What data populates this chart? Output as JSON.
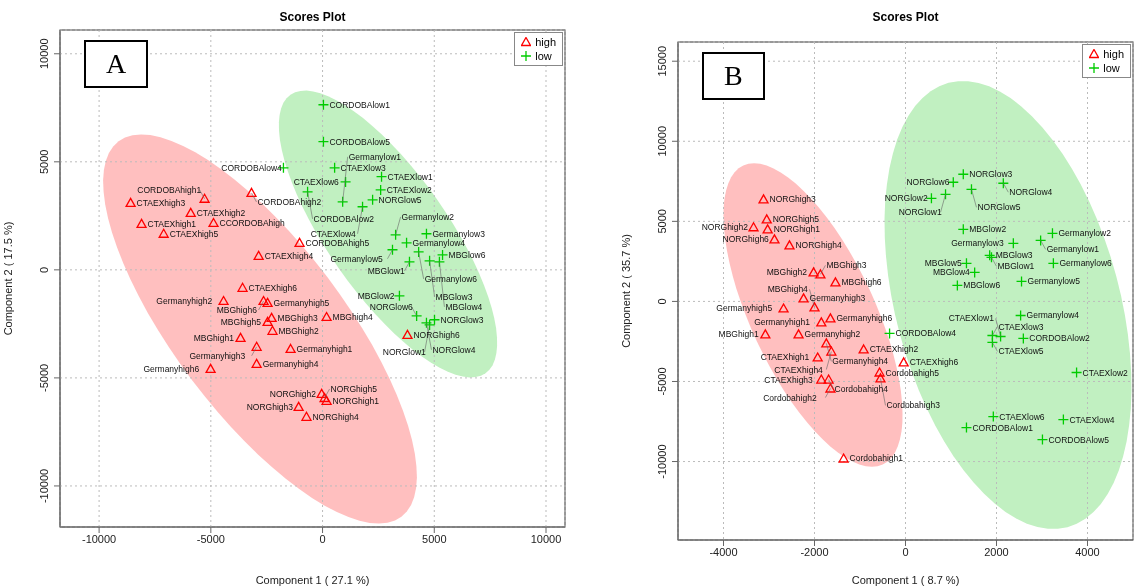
{
  "chart_data": [
    {
      "type": "scatter",
      "title": "Scores Plot",
      "xlabel": "Component 1 ( 27.1 %)",
      "ylabel": "Component 2 ( 17.5 %)",
      "xlim": [
        -11750,
        10850
      ],
      "ylim": [
        -11900,
        11100
      ],
      "xticks": [
        -10000,
        -5000,
        0,
        5000,
        10000
      ],
      "yticks": [
        -10000,
        -5000,
        0,
        5000,
        10000
      ],
      "grid": true,
      "legend": "top right",
      "series": [
        {
          "name": "high",
          "color": "#ff0000",
          "marker": "triangle",
          "x": [
            -8590,
            -5280,
            -5900,
            -8100,
            -4880,
            -7110,
            -3180,
            -1030,
            -2860,
            -3580,
            -4430,
            -2640,
            -2460,
            -2280,
            -2460,
            180,
            -2240,
            -3670,
            -2950,
            -1430,
            -2950,
            -5010,
            -40,
            90,
            180,
            -1070,
            -720,
            3800
          ],
          "values": [
            3100,
            3290,
            2640,
            2130,
            2170,
            1670,
            3560,
            1250,
            650,
            -830,
            -1440,
            -1440,
            -1530,
            -2220,
            -2410,
            -2180,
            -2820,
            -3150,
            -3560,
            -3660,
            -4350,
            -4580,
            -5740,
            -5930,
            -6060,
            -6340,
            -6800,
            -3010
          ]
        },
        {
          "name": "low",
          "color": "#00cc00",
          "marker": "cross",
          "x": [
            40,
            40,
            -1750,
            540,
            2640,
            1030,
            -670,
            2600,
            900,
            2240,
            1790,
            3270,
            4650,
            3760,
            3130,
            4300,
            3890,
            4790,
            5370,
            5230,
            3440,
            4210,
            5010,
            4650,
            4790
          ],
          "values": [
            7640,
            5930,
            4720,
            4720,
            4310,
            4070,
            3610,
            3700,
            3150,
            3240,
            2920,
            1620,
            1670,
            1250,
            930,
            830,
            370,
            420,
            690,
            370,
            -1200,
            -2130,
            -2310,
            -2450,
            -2550
          ]
        }
      ],
      "annotations": [
        "A",
        {
          "text": "CTAEXhigh3",
          "x": -8590,
          "y": 3100
        },
        {
          "text": "CORDOBAhigh1",
          "x": -5280,
          "y": 3290
        },
        {
          "text": "CTAEXhigh2",
          "x": -5900,
          "y": 2640
        },
        {
          "text": "CTAEXhigh1",
          "x": -8100,
          "y": 2130
        },
        {
          "text": "CCORDOBAhigh",
          "x": -4880,
          "y": 2170
        },
        {
          "text": "CTAEXhigh5",
          "x": -7110,
          "y": 1670
        },
        {
          "text": "CORDOBAhigh2",
          "x": -3180,
          "y": 3560
        },
        {
          "text": "CORDOBAhigh5",
          "x": -1030,
          "y": 1250
        },
        {
          "text": "CTAEXhigh4",
          "x": -2860,
          "y": 650
        },
        {
          "text": "CTAEXhigh6",
          "x": -3580,
          "y": -830
        },
        {
          "text": "Germanyhigh2",
          "x": -4430,
          "y": -1440
        },
        {
          "text": "MBGhigh6",
          "x": -2640,
          "y": -1440
        },
        {
          "text": "Germanyhigh5",
          "x": -2460,
          "y": -1530
        },
        {
          "text": "MBGhigh3",
          "x": -2280,
          "y": -2220
        },
        {
          "text": "MBGhigh5",
          "x": -2460,
          "y": -2410
        },
        {
          "text": "MBGhigh4",
          "x": 180,
          "y": -2180
        },
        {
          "text": "MBGhigh2",
          "x": -2240,
          "y": -2820
        },
        {
          "text": "MBGhigh1",
          "x": -3670,
          "y": -3150
        },
        {
          "text": "Germanyhigh3",
          "x": -2950,
          "y": -3560
        },
        {
          "text": "Germanyhigh1",
          "x": -1430,
          "y": -3660
        },
        {
          "text": "Germanyhigh4",
          "x": -2950,
          "y": -4350
        },
        {
          "text": "Germanyhigh6",
          "x": -5010,
          "y": -4580
        },
        {
          "text": "NORGhigh2",
          "x": -40,
          "y": -5740
        },
        {
          "text": "NORGhigh5",
          "x": 90,
          "y": -5930
        },
        {
          "text": "NORGhigh1",
          "x": 180,
          "y": -6060
        },
        {
          "text": "NORGhigh3",
          "x": -1070,
          "y": -6340
        },
        {
          "text": "NORGhigh4",
          "x": -720,
          "y": -6800
        },
        {
          "text": "NORGhigh6",
          "x": 3800,
          "y": -3010
        },
        {
          "text": "CORDOBAlow1",
          "x": 40,
          "y": 7640
        },
        {
          "text": "CORDOBAlow5",
          "x": 40,
          "y": 5930
        },
        {
          "text": "CORDOBAlow4",
          "x": -1750,
          "y": 4720
        },
        {
          "text": "CTAEXlow3",
          "x": 540,
          "y": 4720
        },
        {
          "text": "CTAEXlow1",
          "x": 2640,
          "y": 4310
        },
        {
          "text": "CTAEXlow6",
          "x": 1030,
          "y": 4070
        },
        {
          "text": "CORDOBAlow2",
          "x": -670,
          "y": 3610
        },
        {
          "text": "CTAEXlow2",
          "x": 2600,
          "y": 3700
        },
        {
          "text": "Germanylow1",
          "x": 900,
          "y": 3150
        },
        {
          "text": "NORGlow5",
          "x": 2240,
          "y": 3240
        },
        {
          "text": "CTAEXlow4",
          "x": 1790,
          "y": 2920
        },
        {
          "text": "Germanylow2",
          "x": 3270,
          "y": 1620
        },
        {
          "text": "Germanylow3",
          "x": 4650,
          "y": 1670
        },
        {
          "text": "Germanylow4",
          "x": 3760,
          "y": 1250
        },
        {
          "text": "Germanylow5",
          "x": 3130,
          "y": 930
        },
        {
          "text": "Germanylow6",
          "x": 4300,
          "y": 830
        },
        {
          "text": "MBGlow1",
          "x": 3890,
          "y": 370
        },
        {
          "text": "MBGlow3",
          "x": 4790,
          "y": 420
        },
        {
          "text": "MBGlow6",
          "x": 5370,
          "y": 690
        },
        {
          "text": "MBGlow4",
          "x": 5230,
          "y": 370
        },
        {
          "text": "MBGlow2",
          "x": 3440,
          "y": -1200
        },
        {
          "text": "NORGlow6",
          "x": 4210,
          "y": -2130
        },
        {
          "text": "NORGlow3",
          "x": 5010,
          "y": -2310
        },
        {
          "text": "NORGlow4",
          "x": 4650,
          "y": -2450
        },
        {
          "text": "NORGlow1",
          "x": 4790,
          "y": -2550
        }
      ]
    },
    {
      "type": "scatter",
      "title": "Scores Plot",
      "xlabel": "Component 1 ( 8.7 %)",
      "ylabel": "Component 2 ( 35.7 %)",
      "xlim": [
        -5000,
        5000
      ],
      "ylim": [
        -14900,
        16200
      ],
      "xticks": [
        -4000,
        -2000,
        0,
        2000,
        4000
      ],
      "yticks": [
        -10000,
        -5000,
        0,
        5000,
        10000,
        15000
      ],
      "grid": true,
      "legend": "top right",
      "series": [
        {
          "name": "high",
          "color": "#ff0000",
          "marker": "triangle",
          "x": [
            -3120,
            -3050,
            -3340,
            -3030,
            -2880,
            -2550,
            -2020,
            -1870,
            -1540,
            -2240,
            -2680,
            -2000,
            -1850,
            -1650,
            -2350,
            -3080,
            -1740,
            -1630,
            -920,
            -1930,
            -40,
            -570,
            -1850,
            -1690,
            -550,
            -1650,
            -1360
          ],
          "values": [
            6370,
            5120,
            4630,
            4500,
            3870,
            3500,
            1810,
            1690,
            1190,
            190,
            -440,
            -370,
            -1310,
            -1060,
            -2060,
            -2060,
            -2620,
            -3130,
            -3000,
            -3500,
            -3810,
            -4440,
            -4880,
            -4880,
            -4810,
            -5440,
            -9810
          ]
        },
        {
          "name": "low",
          "color": "#00cc00",
          "marker": "cross",
          "x": [
            1270,
            1050,
            2150,
            1450,
            880,
            570,
            1270,
            3230,
            2970,
            2370,
            1850,
            1890,
            1340,
            3250,
            1520,
            2550,
            1140,
            2530,
            -350,
            1910,
            2090,
            2590,
            1910,
            3760,
            1930,
            3470,
            1340,
            3010
          ],
          "values": [
            7940,
            7440,
            7380,
            7000,
            6690,
            6440,
            4500,
            4250,
            3810,
            3630,
            2880,
            2750,
            2380,
            2380,
            1810,
            1250,
            1000,
            -880,
            -2000,
            -2130,
            -2190,
            -2310,
            -2560,
            -4440,
            -7190,
            -7380,
            -7880,
            -8630
          ]
        }
      ],
      "annotations": [
        "B",
        {
          "text": "NORGhigh3",
          "x": -3120,
          "y": 6370
        },
        {
          "text": "NORGhigh5",
          "x": -3050,
          "y": 5120
        },
        {
          "text": "NORGhigh2",
          "x": -3340,
          "y": 4630
        },
        {
          "text": "NORGhigh1",
          "x": -3030,
          "y": 4500
        },
        {
          "text": "NORGhigh6",
          "x": -2880,
          "y": 3870
        },
        {
          "text": "NORGhigh4",
          "x": -2550,
          "y": 3500
        },
        {
          "text": "MBGhigh2",
          "x": -2020,
          "y": 1810
        },
        {
          "text": "MBGhigh3",
          "x": -1870,
          "y": 1690
        },
        {
          "text": "MBGhigh6",
          "x": -1540,
          "y": 1190
        },
        {
          "text": "Germanyhigh3",
          "x": -2240,
          "y": 190
        },
        {
          "text": "Germanyhigh5",
          "x": -2680,
          "y": -440
        },
        {
          "text": "MBGhigh4",
          "x": -2000,
          "y": -370
        },
        {
          "text": "Germanyhigh1",
          "x": -1850,
          "y": -1310
        },
        {
          "text": "Germanyhigh6",
          "x": -1650,
          "y": -1060
        },
        {
          "text": "Germanyhigh2",
          "x": -2350,
          "y": -2060
        },
        {
          "text": "MBGhigh1",
          "x": -3080,
          "y": -2060
        },
        {
          "text": "Germanyhigh4",
          "x": -1740,
          "y": -2620
        },
        {
          "text": "CTAEXhigh4",
          "x": -1630,
          "y": -3130
        },
        {
          "text": "CTAEXhigh2",
          "x": -920,
          "y": -3000
        },
        {
          "text": "CTAEXhigh1",
          "x": -1930,
          "y": -3500
        },
        {
          "text": "CTAEXhigh6",
          "x": -40,
          "y": -3810
        },
        {
          "text": "Cordobahigh5",
          "x": -570,
          "y": -4440
        },
        {
          "text": "CTAEXhigh3",
          "x": -1850,
          "y": -4880
        },
        {
          "text": "Cordobahigh4",
          "x": -1690,
          "y": -4880
        },
        {
          "text": "Cordobahigh3",
          "x": -550,
          "y": -4810
        },
        {
          "text": "Cordobahigh2",
          "x": -1650,
          "y": -5440
        },
        {
          "text": "Cordobahigh1",
          "x": -1360,
          "y": -9810
        },
        {
          "text": "NORGlow3",
          "x": 1270,
          "y": 7940
        },
        {
          "text": "NORGlow6",
          "x": 1050,
          "y": 7440
        },
        {
          "text": "NORGlow4",
          "x": 2150,
          "y": 7380
        },
        {
          "text": "NORGlow5",
          "x": 1450,
          "y": 7000
        },
        {
          "text": "NORGlow1",
          "x": 880,
          "y": 6690
        },
        {
          "text": "NORGlow2",
          "x": 570,
          "y": 6440
        },
        {
          "text": "MBGlow2",
          "x": 1270,
          "y": 4500
        },
        {
          "text": "Germanylow2",
          "x": 3230,
          "y": 4250
        },
        {
          "text": "Germanylow1",
          "x": 2970,
          "y": 3810
        },
        {
          "text": "Germanylow3",
          "x": 2370,
          "y": 3630
        },
        {
          "text": "MBGlow3",
          "x": 1850,
          "y": 2880
        },
        {
          "text": "MBGlow1",
          "x": 1890,
          "y": 2750
        },
        {
          "text": "MBGlow5",
          "x": 1340,
          "y": 2380
        },
        {
          "text": "Germanylow6",
          "x": 3250,
          "y": 2380
        },
        {
          "text": "MBGlow4",
          "x": 1520,
          "y": 1810
        },
        {
          "text": "Germanylow5",
          "x": 2550,
          "y": 1250
        },
        {
          "text": "MBGlow6",
          "x": 1140,
          "y": 1000
        },
        {
          "text": "Germanylow4",
          "x": 2530,
          "y": -880
        },
        {
          "text": "CORDOBAlow4",
          "x": -350,
          "y": -2000
        },
        {
          "text": "CTAEXlow3",
          "x": 1910,
          "y": -2130
        },
        {
          "text": "CTAEXlow1",
          "x": 2090,
          "y": -2190
        },
        {
          "text": "CORDOBAlow2",
          "x": 2590,
          "y": -2310
        },
        {
          "text": "CTAEXlow5",
          "x": 1910,
          "y": -2560
        },
        {
          "text": "CTAEXlow2",
          "x": 3760,
          "y": -4440
        },
        {
          "text": "CTAEXlow6",
          "x": 1930,
          "y": -7190
        },
        {
          "text": "CTAEXlow4",
          "x": 3470,
          "y": -7380
        },
        {
          "text": "CORDOBAlow1",
          "x": 1340,
          "y": -7880
        },
        {
          "text": "CORDOBAlow5",
          "x": 3010,
          "y": -8630
        }
      ]
    }
  ]
}
